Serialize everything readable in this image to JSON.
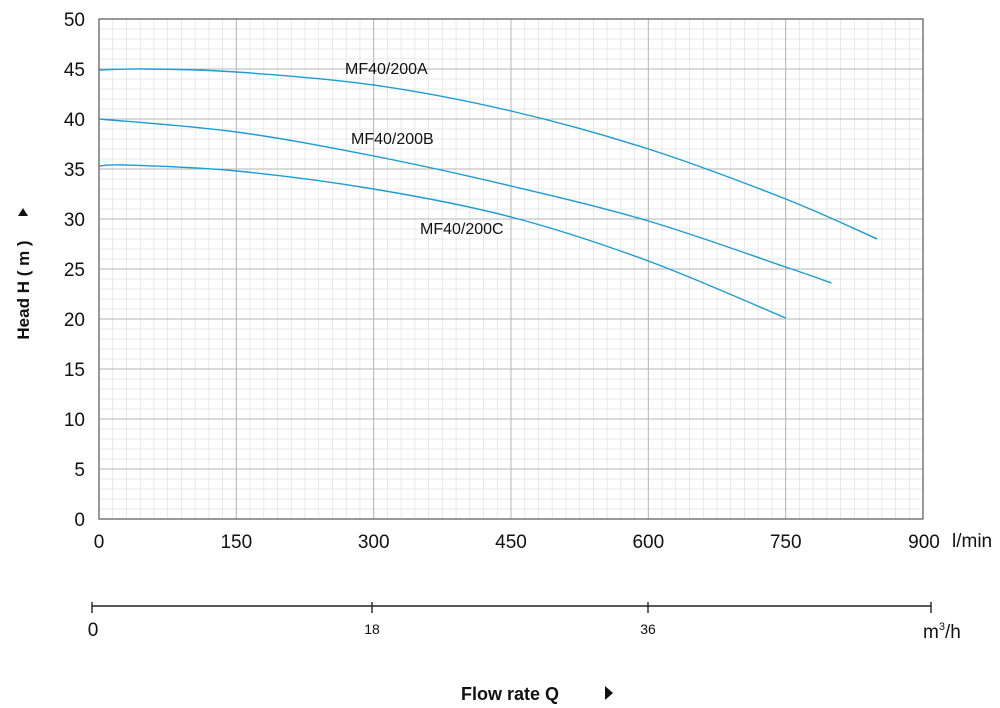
{
  "chart_data": {
    "type": "line",
    "xlabel": "Flow rate Q",
    "ylabel": "Head H ( m )",
    "x_unit": "l/min",
    "x_ticks": [
      "0",
      "150",
      "300",
      "450",
      "600",
      "750",
      "900"
    ],
    "y_ticks": [
      "0",
      "5",
      "10",
      "15",
      "20",
      "25",
      "30",
      "35",
      "40",
      "45",
      "50"
    ],
    "xlim": [
      0,
      900
    ],
    "ylim": [
      0,
      50
    ],
    "grid": true,
    "secondary_axis": {
      "unit": "m³/h",
      "unit_base": "m",
      "unit_sup": "3",
      "unit_tail": "/h",
      "ticks": [
        "0",
        "18",
        "36"
      ]
    },
    "series": [
      {
        "name": "MF40/200A",
        "color": "#1a9bd6",
        "x": [
          0,
          50,
          150,
          300,
          450,
          600,
          750,
          850
        ],
        "y": [
          44.9,
          45.0,
          44.7,
          43.4,
          40.8,
          37.0,
          32.0,
          28.0
        ]
      },
      {
        "name": "MF40/200B",
        "color": "#1a9bd6",
        "x": [
          0,
          150,
          300,
          450,
          600,
          750,
          800
        ],
        "y": [
          40.0,
          38.7,
          36.3,
          33.3,
          29.8,
          25.2,
          23.6
        ]
      },
      {
        "name": "MF40/200C",
        "color": "#1a9bd6",
        "x": [
          0,
          30,
          150,
          300,
          450,
          600,
          750
        ],
        "y": [
          35.3,
          35.4,
          34.8,
          33.0,
          30.2,
          25.8,
          20.1
        ]
      }
    ]
  }
}
